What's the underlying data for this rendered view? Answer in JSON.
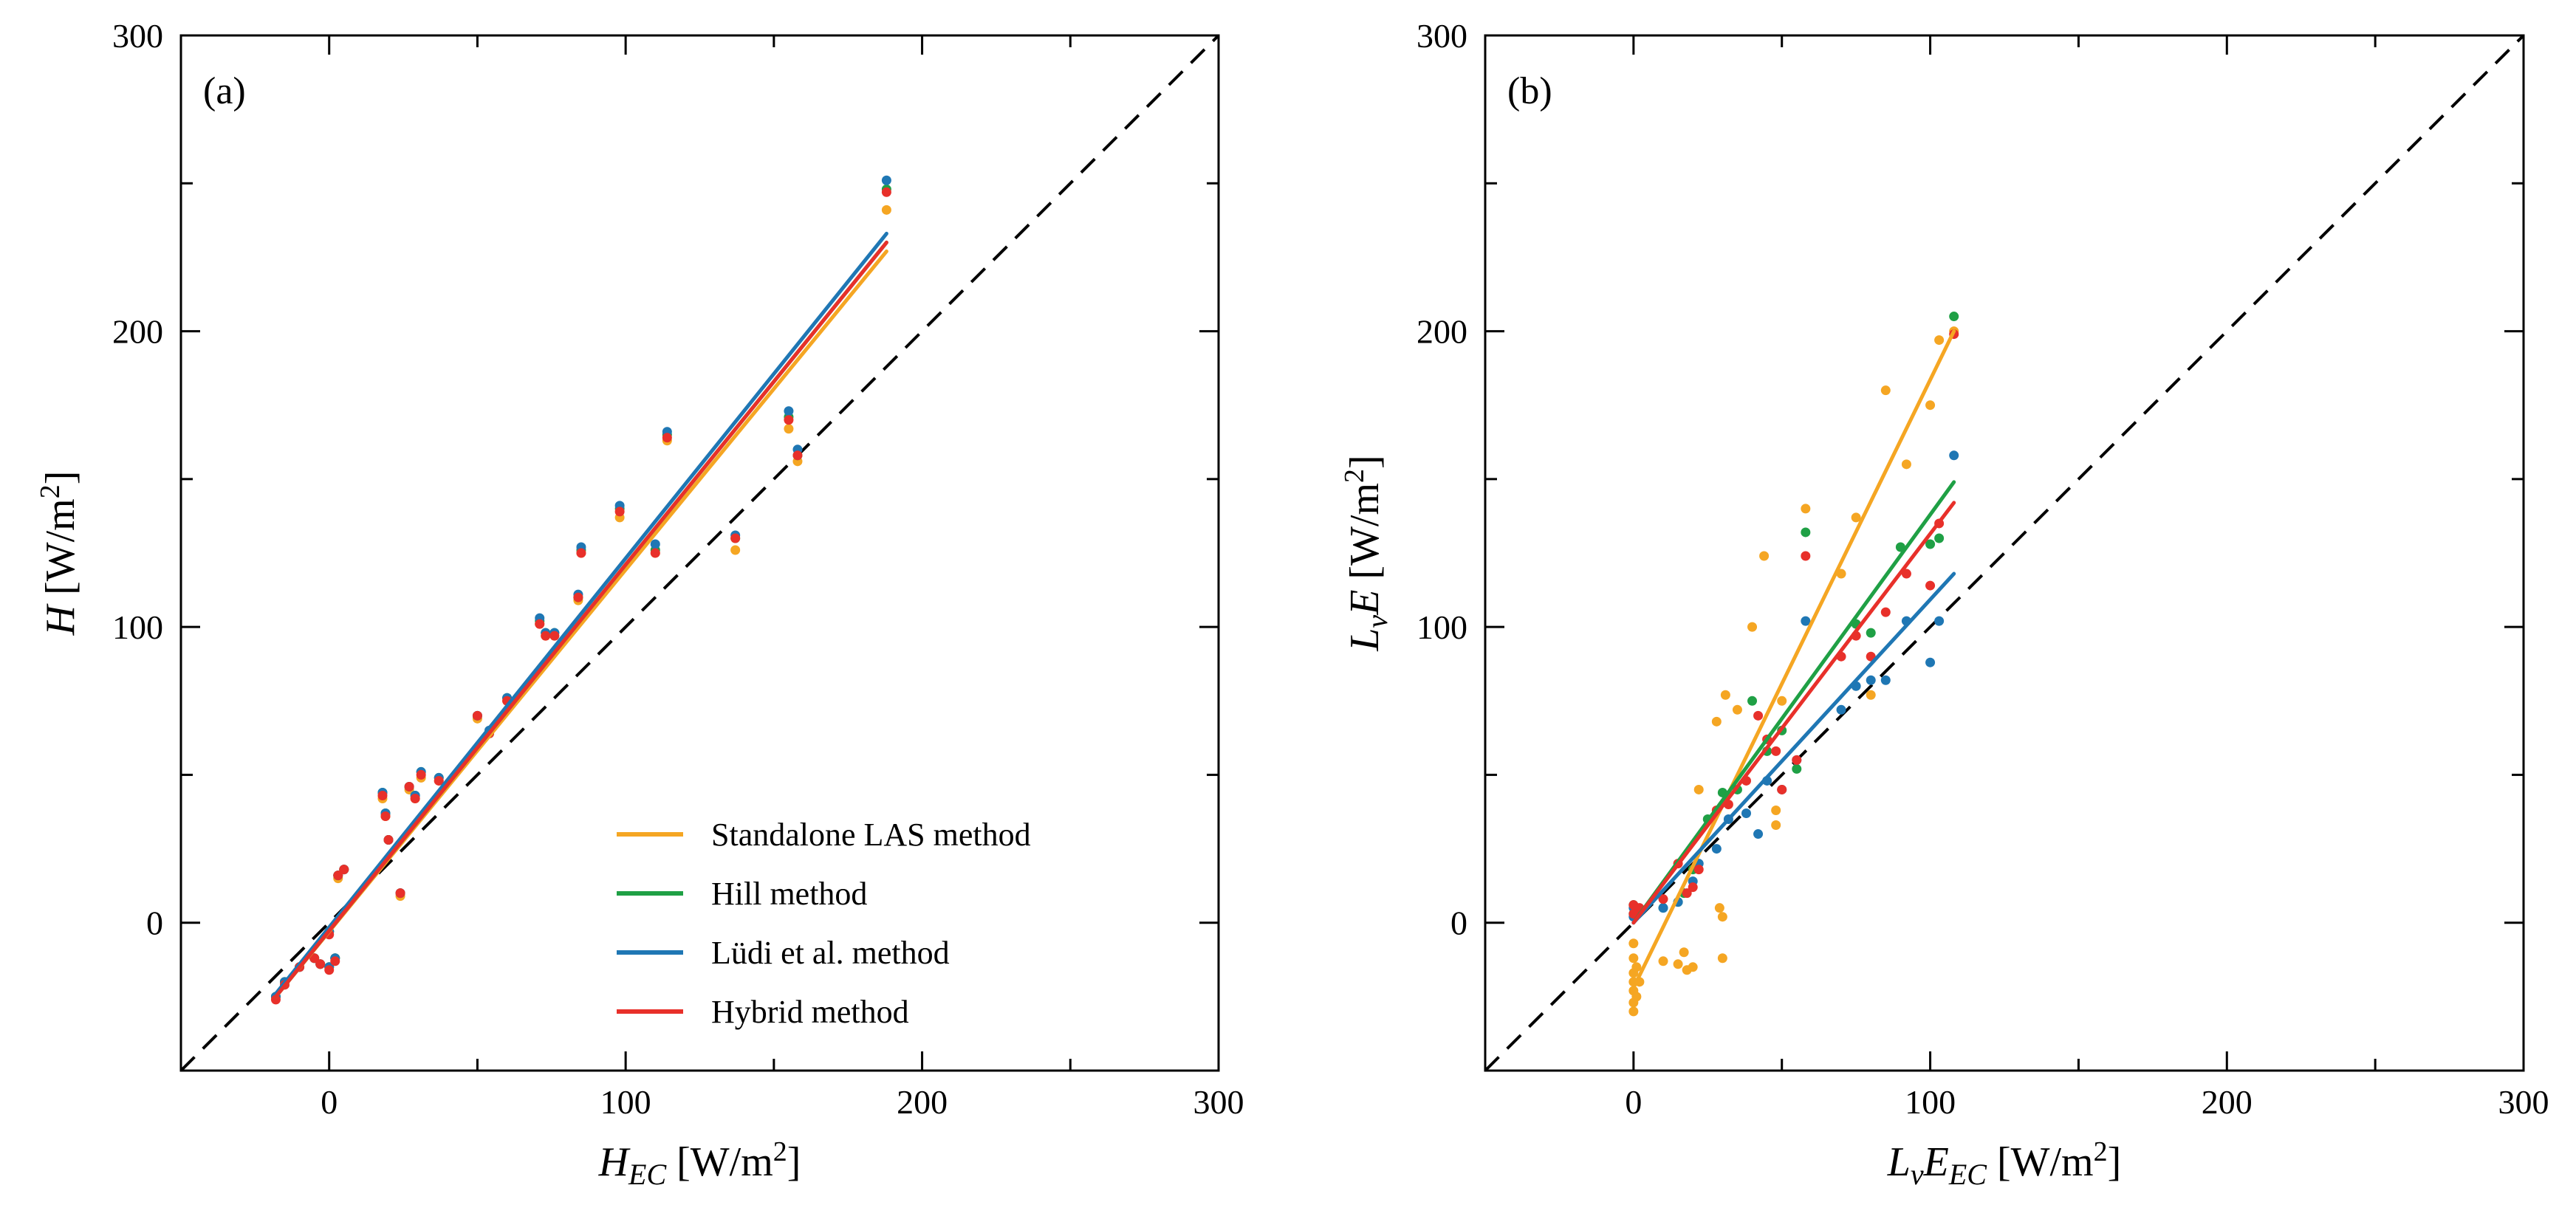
{
  "chart_data": [
    {
      "type": "scatter",
      "panel_label": "(a)",
      "xlabel": {
        "main": "H",
        "sub": "EC",
        "unit": "[W/m",
        "sup": "2",
        "close": "]"
      },
      "ylabel": {
        "main": "H",
        "unit": "[W/m",
        "sup": "2",
        "close": "]"
      },
      "xlim": [
        -50,
        300
      ],
      "ylim": [
        -50,
        300
      ],
      "xticks": [
        0,
        100,
        200,
        300
      ],
      "yticks": [
        0,
        100,
        200,
        300
      ],
      "xtick_labels": [
        "0",
        "100",
        "200",
        "300"
      ],
      "ytick_labels": [
        "0",
        "100",
        "200",
        "300"
      ],
      "one_to_one_line": true,
      "legend": {
        "placement": "bottom-right",
        "entries": [
          "Standalone LAS method",
          "Hill method",
          "Lüdi et al. method",
          "Hybrid method"
        ]
      },
      "series": [
        {
          "name": "Standalone LAS method",
          "color": "#f5a623",
          "fit": {
            "x": [
              -18,
              188
            ],
            "y": [
              -25,
              227
            ]
          },
          "points": [
            [
              -18,
              -25
            ],
            [
              -15,
              -20
            ],
            [
              -10,
              -15
            ],
            [
              -5,
              -12
            ],
            [
              -3,
              -14
            ],
            [
              0,
              -15
            ],
            [
              0,
              -3
            ],
            [
              2,
              -12
            ],
            [
              3,
              15
            ],
            [
              5,
              18
            ],
            [
              18,
              42
            ],
            [
              19,
              36
            ],
            [
              20,
              28
            ],
            [
              24,
              9
            ],
            [
              27,
              45
            ],
            [
              29,
              42
            ],
            [
              31,
              49
            ],
            [
              37,
              48
            ],
            [
              50,
              69
            ],
            [
              54,
              64
            ],
            [
              60,
              75
            ],
            [
              71,
              101
            ],
            [
              73,
              97
            ],
            [
              76,
              97
            ],
            [
              84,
              109
            ],
            [
              85,
              125
            ],
            [
              98,
              137
            ],
            [
              110,
              125
            ],
            [
              114,
              163
            ],
            [
              137,
              126
            ],
            [
              155,
              167
            ],
            [
              158,
              156
            ],
            [
              188,
              241
            ]
          ]
        },
        {
          "name": "Hill method",
          "color": "#1fa045",
          "fit": {
            "x": [
              -18,
              188
            ],
            "y": [
              -25,
              230
            ]
          },
          "points": [
            [
              -18,
              -25
            ],
            [
              -15,
              -20
            ],
            [
              -10,
              -15
            ],
            [
              -5,
              -12
            ],
            [
              -3,
              -14
            ],
            [
              0,
              -15
            ],
            [
              0,
              -3
            ],
            [
              2,
              -12
            ],
            [
              3,
              16
            ],
            [
              5,
              18
            ],
            [
              18,
              44
            ],
            [
              19,
              37
            ],
            [
              20,
              28
            ],
            [
              24,
              10
            ],
            [
              27,
              46
            ],
            [
              29,
              43
            ],
            [
              31,
              51
            ],
            [
              37,
              49
            ],
            [
              50,
              70
            ],
            [
              54,
              64
            ],
            [
              60,
              76
            ],
            [
              71,
              102
            ],
            [
              73,
              98
            ],
            [
              76,
              98
            ],
            [
              84,
              110
            ],
            [
              85,
              126
            ],
            [
              98,
              140
            ],
            [
              110,
              126
            ],
            [
              114,
              165
            ],
            [
              137,
              130
            ],
            [
              155,
              171
            ],
            [
              158,
              158
            ],
            [
              188,
              248
            ]
          ]
        },
        {
          "name": "Lüdi et al. method",
          "color": "#1f77b4",
          "fit": {
            "x": [
              -18,
              188
            ],
            "y": [
              -24,
              233
            ]
          },
          "points": [
            [
              -18,
              -25
            ],
            [
              -15,
              -20
            ],
            [
              -10,
              -15
            ],
            [
              -5,
              -12
            ],
            [
              -3,
              -14
            ],
            [
              0,
              -15
            ],
            [
              0,
              -3
            ],
            [
              2,
              -12
            ],
            [
              3,
              16
            ],
            [
              5,
              18
            ],
            [
              18,
              44
            ],
            [
              19,
              37
            ],
            [
              20,
              28
            ],
            [
              24,
              10
            ],
            [
              27,
              46
            ],
            [
              29,
              43
            ],
            [
              31,
              51
            ],
            [
              37,
              49
            ],
            [
              50,
              70
            ],
            [
              54,
              65
            ],
            [
              60,
              76
            ],
            [
              71,
              103
            ],
            [
              73,
              98
            ],
            [
              76,
              98
            ],
            [
              84,
              111
            ],
            [
              85,
              127
            ],
            [
              98,
              141
            ],
            [
              110,
              128
            ],
            [
              114,
              166
            ],
            [
              137,
              131
            ],
            [
              155,
              173
            ],
            [
              158,
              160
            ],
            [
              188,
              251
            ]
          ]
        },
        {
          "name": "Hybrid method",
          "color": "#e8302a",
          "fit": {
            "x": [
              -18,
              188
            ],
            "y": [
              -25,
              230
            ]
          },
          "points": [
            [
              -18,
              -26
            ],
            [
              -15,
              -21
            ],
            [
              -10,
              -15
            ],
            [
              -5,
              -12
            ],
            [
              -3,
              -14
            ],
            [
              0,
              -16
            ],
            [
              0,
              -4
            ],
            [
              2,
              -13
            ],
            [
              3,
              16
            ],
            [
              5,
              18
            ],
            [
              18,
              43
            ],
            [
              19,
              36
            ],
            [
              20,
              28
            ],
            [
              24,
              10
            ],
            [
              27,
              46
            ],
            [
              29,
              42
            ],
            [
              31,
              50
            ],
            [
              37,
              48
            ],
            [
              50,
              70
            ],
            [
              54,
              64
            ],
            [
              60,
              75
            ],
            [
              71,
              101
            ],
            [
              73,
              97
            ],
            [
              76,
              97
            ],
            [
              84,
              110
            ],
            [
              85,
              125
            ],
            [
              98,
              139
            ],
            [
              110,
              125
            ],
            [
              114,
              164
            ],
            [
              137,
              130
            ],
            [
              155,
              170
            ],
            [
              158,
              158
            ],
            [
              188,
              247
            ]
          ]
        }
      ]
    },
    {
      "type": "scatter",
      "panel_label": "(b)",
      "xlabel": {
        "pre": "L",
        "pre_sub": "v",
        "main": "E",
        "sub": "EC",
        "unit": "[W/m",
        "sup": "2",
        "close": "]"
      },
      "ylabel": {
        "pre": "L",
        "pre_sub": "v",
        "main": "E",
        "unit": "[W/m",
        "sup": "2",
        "close": "]"
      },
      "xlim": [
        -50,
        300
      ],
      "ylim": [
        -50,
        300
      ],
      "xticks": [
        0,
        100,
        200,
        300
      ],
      "yticks": [
        0,
        100,
        200,
        300
      ],
      "xtick_labels": [
        "0",
        "100",
        "200",
        "300"
      ],
      "ytick_labels": [
        "0",
        "100",
        "200",
        "300"
      ],
      "one_to_one_line": true,
      "series": [
        {
          "name": "Standalone LAS method",
          "color": "#f5a623",
          "fit": {
            "x": [
              0,
              108
            ],
            "y": [
              -22,
              200
            ]
          },
          "points": [
            [
              0,
              -30
            ],
            [
              0,
              -27
            ],
            [
              0,
              -23
            ],
            [
              0,
              -20
            ],
            [
              0,
              -17
            ],
            [
              0,
              -12
            ],
            [
              0,
              -7
            ],
            [
              1,
              -25
            ],
            [
              1,
              -15
            ],
            [
              2,
              -20
            ],
            [
              10,
              -13
            ],
            [
              15,
              -14
            ],
            [
              17,
              -10
            ],
            [
              18,
              -16
            ],
            [
              20,
              -15
            ],
            [
              22,
              45
            ],
            [
              28,
              68
            ],
            [
              29,
              5
            ],
            [
              30,
              2
            ],
            [
              30,
              -12
            ],
            [
              31,
              77
            ],
            [
              35,
              72
            ],
            [
              40,
              100
            ],
            [
              44,
              124
            ],
            [
              48,
              38
            ],
            [
              48,
              33
            ],
            [
              50,
              75
            ],
            [
              58,
              140
            ],
            [
              70,
              118
            ],
            [
              75,
              137
            ],
            [
              80,
              77
            ],
            [
              85,
              180
            ],
            [
              92,
              155
            ],
            [
              100,
              175
            ],
            [
              103,
              197
            ],
            [
              108,
              200
            ]
          ]
        },
        {
          "name": "Hill method",
          "color": "#1fa045",
          "fit": {
            "x": [
              0,
              108
            ],
            "y": [
              0,
              149
            ]
          },
          "points": [
            [
              0,
              3
            ],
            [
              0,
              6
            ],
            [
              1,
              4
            ],
            [
              10,
              5
            ],
            [
              15,
              7
            ],
            [
              17,
              10
            ],
            [
              20,
              18
            ],
            [
              25,
              35
            ],
            [
              30,
              44
            ],
            [
              35,
              45
            ],
            [
              40,
              75
            ],
            [
              45,
              58
            ],
            [
              50,
              65
            ],
            [
              55,
              52
            ],
            [
              58,
              132
            ],
            [
              75,
              101
            ],
            [
              80,
              98
            ],
            [
              90,
              127
            ],
            [
              100,
              128
            ],
            [
              103,
              130
            ],
            [
              108,
              205
            ]
          ]
        },
        {
          "name": "Lüdi et al. method",
          "color": "#1f77b4",
          "fit": {
            "x": [
              0,
              108
            ],
            "y": [
              0,
              118
            ]
          },
          "points": [
            [
              0,
              2
            ],
            [
              0,
              5
            ],
            [
              1,
              3
            ],
            [
              10,
              5
            ],
            [
              15,
              7
            ],
            [
              20,
              14
            ],
            [
              22,
              20
            ],
            [
              28,
              25
            ],
            [
              32,
              35
            ],
            [
              38,
              37
            ],
            [
              42,
              30
            ],
            [
              45,
              48
            ],
            [
              50,
              45
            ],
            [
              55,
              55
            ],
            [
              58,
              102
            ],
            [
              70,
              72
            ],
            [
              75,
              80
            ],
            [
              80,
              82
            ],
            [
              85,
              82
            ],
            [
              92,
              102
            ],
            [
              100,
              88
            ],
            [
              103,
              102
            ],
            [
              108,
              158
            ]
          ]
        },
        {
          "name": "Hybrid method",
          "color": "#e8302a",
          "fit": {
            "x": [
              0,
              108
            ],
            "y": [
              0,
              142
            ]
          },
          "points": [
            [
              0,
              3
            ],
            [
              0,
              6
            ],
            [
              2,
              5
            ],
            [
              10,
              8
            ],
            [
              15,
              20
            ],
            [
              18,
              10
            ],
            [
              20,
              12
            ],
            [
              22,
              18
            ],
            [
              28,
              38
            ],
            [
              32,
              40
            ],
            [
              38,
              48
            ],
            [
              42,
              70
            ],
            [
              45,
              62
            ],
            [
              48,
              58
            ],
            [
              50,
              45
            ],
            [
              55,
              55
            ],
            [
              58,
              124
            ],
            [
              70,
              90
            ],
            [
              75,
              97
            ],
            [
              80,
              90
            ],
            [
              85,
              105
            ],
            [
              92,
              118
            ],
            [
              100,
              114
            ],
            [
              103,
              135
            ],
            [
              108,
              199
            ]
          ]
        }
      ]
    }
  ]
}
